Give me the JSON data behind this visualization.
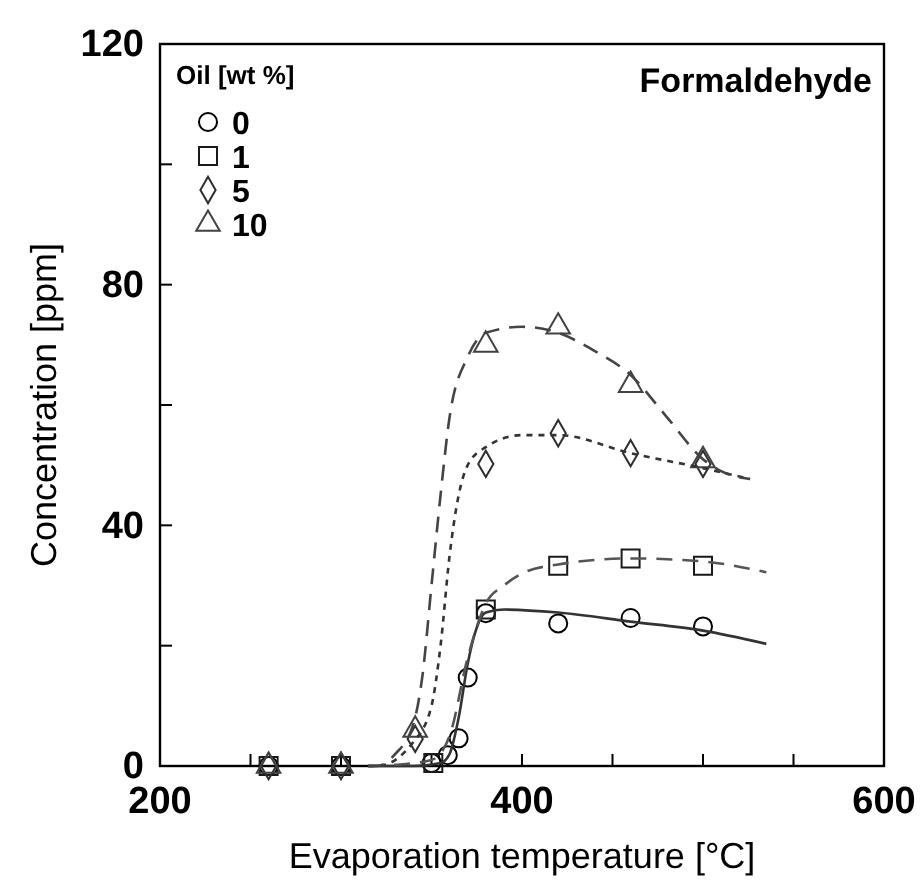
{
  "chart_data": {
    "type": "scatter",
    "title": "Formaldehyde",
    "xlabel": "Evaporation temperature [°C]",
    "ylabel": "Concentration [ppm]",
    "legend_title": "Oil  [wt %]",
    "legend": "top left",
    "grid": false,
    "xlim": [
      200,
      600
    ],
    "ylim": [
      0,
      120
    ],
    "xticks": [
      200,
      {
        "value": 250,
        "label": null
      },
      {
        "value": 300,
        "label": null
      },
      {
        "value": 350,
        "label": null
      },
      400,
      {
        "value": 450,
        "label": null
      },
      {
        "value": 500,
        "label": null
      },
      {
        "value": 550,
        "label": null
      },
      600
    ],
    "yticks": [
      0,
      {
        "value": 20,
        "label": null
      },
      40,
      {
        "value": 60,
        "label": null
      },
      80,
      {
        "value": 100,
        "label": null
      },
      120
    ],
    "series": [
      {
        "name": "0",
        "marker": "circle",
        "color": "#000000",
        "x": [
          260,
          300,
          350,
          359,
          365,
          370,
          380,
          420,
          460,
          500
        ],
        "values": [
          0,
          0,
          0.5,
          1.8,
          4.6,
          14.7,
          25.4,
          23.7,
          24.6,
          23.2
        ]
      },
      {
        "name": "1",
        "marker": "square",
        "color": "#1a1a1a",
        "x": [
          260,
          300,
          351,
          380,
          420,
          460,
          500
        ],
        "values": [
          0,
          0,
          0.5,
          26,
          33.3,
          34.5,
          33.3
        ]
      },
      {
        "name": "5",
        "marker": "diamond",
        "color": "#2e2e2e",
        "x": [
          260,
          300,
          341,
          380,
          420,
          460,
          500
        ],
        "values": [
          0,
          0,
          4.5,
          50.2,
          55.3,
          52,
          50.2
        ]
      },
      {
        "name": "10",
        "marker": "triangle",
        "color": "#424242",
        "x": [
          260,
          300,
          341,
          380,
          420,
          460,
          500
        ],
        "values": [
          0,
          0,
          6,
          70,
          73,
          63.3,
          50.8
        ]
      },
      {
        "type": "line",
        "line_style": "solid",
        "color": "#333333",
        "x": [
          315,
          340,
          355,
          360,
          365,
          370,
          375,
          380,
          390,
          420,
          460,
          500,
          535
        ],
        "values": [
          0,
          0,
          0.5,
          2,
          8,
          17,
          23,
          25.5,
          26,
          25.5,
          24,
          22.5,
          20.3
        ]
      },
      {
        "type": "line",
        "line_style": "dashed",
        "color": "#555555",
        "x": [
          315,
          330,
          350,
          360,
          370,
          380,
          390,
          400,
          420,
          460,
          500,
          535
        ],
        "values": [
          0,
          0.2,
          1,
          5,
          18,
          27,
          30,
          32,
          33.5,
          34.5,
          34,
          32.2
        ]
      },
      {
        "type": "line",
        "line_style": "dotted",
        "color": "#333333",
        "x": [
          315,
          320,
          340,
          350,
          355,
          360,
          365,
          370,
          380,
          400,
          420,
          460,
          500,
          526
        ],
        "values": [
          0,
          0,
          4,
          10,
          20,
          35,
          45,
          50,
          53,
          55,
          55,
          52,
          49.5,
          47.7
        ]
      },
      {
        "type": "line",
        "line_style": "dashed",
        "color": "#444444",
        "x": [
          315,
          320,
          330,
          340,
          345,
          350,
          355,
          360,
          370,
          380,
          400,
          420,
          440,
          460,
          480,
          500,
          510,
          526
        ],
        "values": [
          0,
          0,
          2,
          7,
          15,
          30,
          45,
          58,
          68,
          72,
          73,
          72,
          69,
          65,
          58,
          51,
          49,
          47.7
        ]
      }
    ]
  }
}
